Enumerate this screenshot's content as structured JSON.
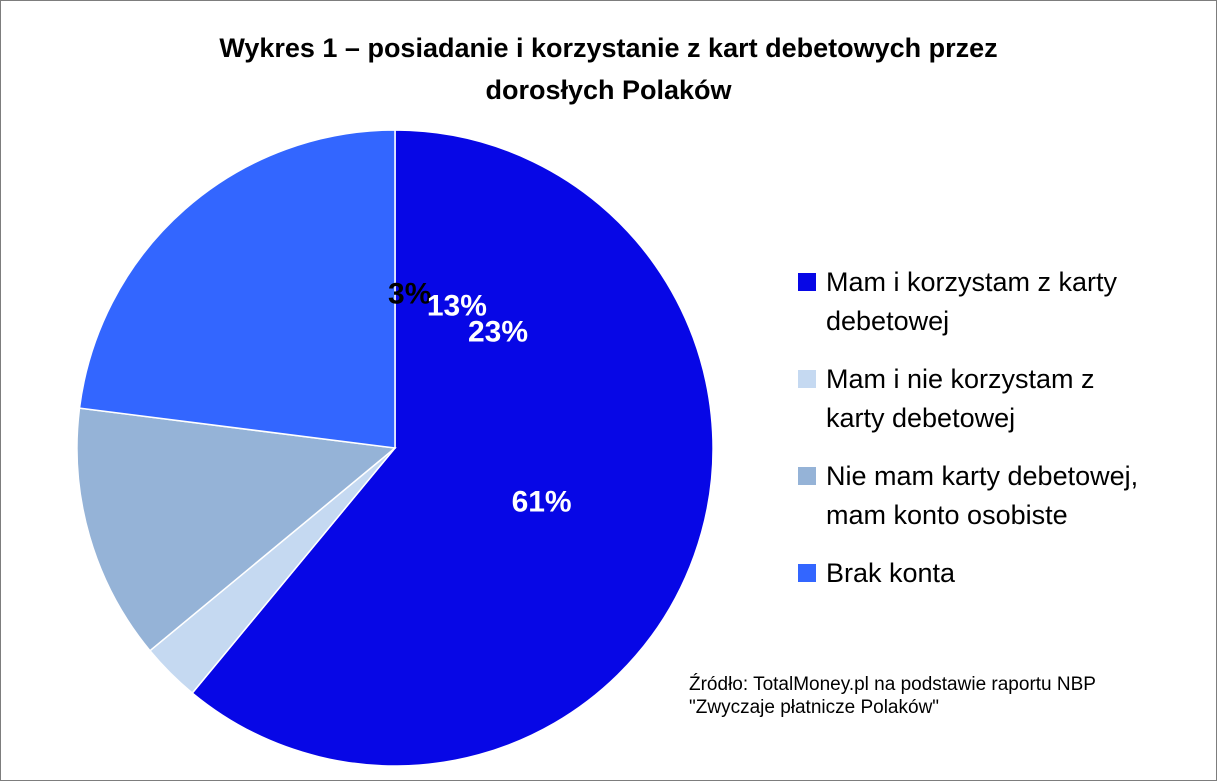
{
  "header": {
    "title_line1": "Wykres 1 – posiadanie i korzystanie z kart debetowych przez",
    "title_line2": "dorosłych Polaków"
  },
  "chart_data": {
    "type": "pie",
    "title": "Wykres 1 – posiadanie i korzystanie z kart debetowych przez dorosłych Polaków",
    "unit": "%",
    "start_angle_deg": -90,
    "direction": "clockwise",
    "legend_position": "right",
    "data_labels": "inside",
    "slices": [
      {
        "label": "Mam i korzystam z karty debetowej",
        "legend_lines": "Mam i korzystam z karty\ndebetowej",
        "value": 61,
        "data_label": "61%",
        "color": "#0707E6",
        "label_color": "#FFFFFF"
      },
      {
        "label": "Mam i nie korzystam z karty debetowej",
        "legend_lines": "Mam i nie korzystam z\nkarty debetowej",
        "value": 3,
        "data_label": "3%",
        "color": "#C5D9F1",
        "label_color": "#000000"
      },
      {
        "label": "Nie mam karty debetowej, mam konto osobiste",
        "legend_lines": "Nie mam karty debetowej,\nmam konto osobiste",
        "value": 13,
        "data_label": "13%",
        "color": "#95B3D7",
        "label_color": "#FFFFFF"
      },
      {
        "label": "Brak konta",
        "legend_lines": "Brak konta",
        "value": 23,
        "data_label": "23%",
        "color": "#3366FF",
        "label_color": "#FFFFFF"
      }
    ]
  },
  "footer": {
    "source_line1": "Źródło: TotalMoney.pl na podstawie raportu NBP",
    "source_line2": "\"Zwyczaje płatnicze Polaków\""
  }
}
